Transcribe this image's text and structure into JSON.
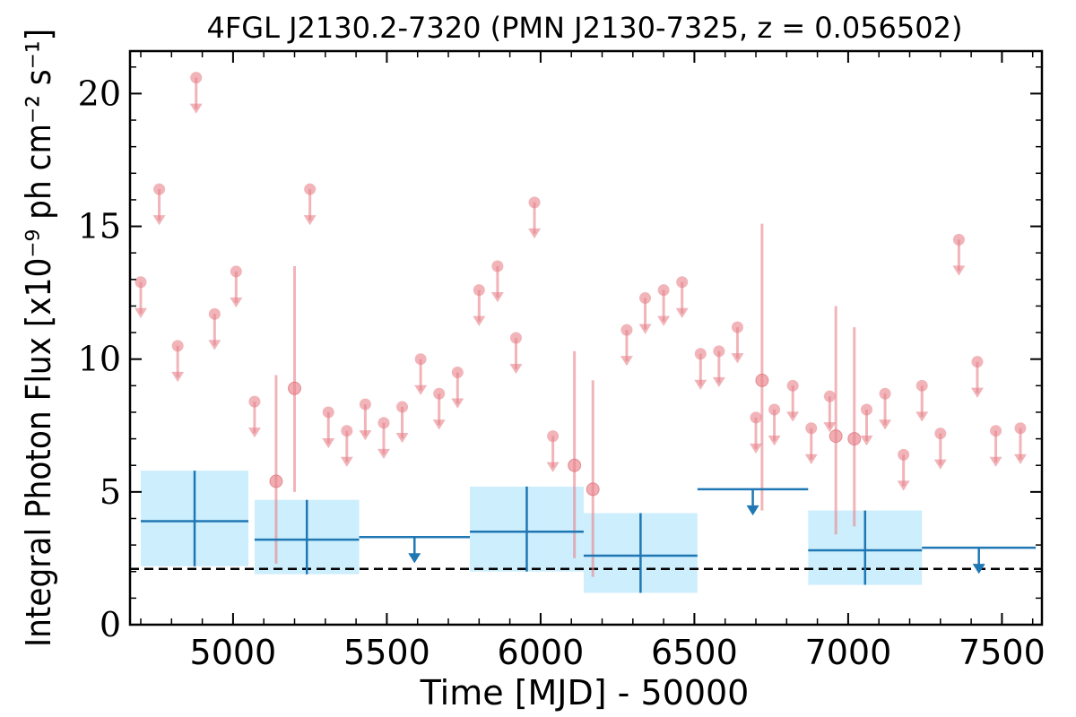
{
  "chart_data": {
    "type": "scatter",
    "title": "4FGL J2130.2-7320 (PMN J2130-7325, z = 0.056502)",
    "xlabel": "Time [MJD] - 50000",
    "ylabel": "Integral Photon Flux [x10⁻⁹ ph cm⁻² s⁻¹]",
    "xlim": [
      4665,
      7630
    ],
    "ylim": [
      0,
      21.6
    ],
    "x_ticks": [
      5000,
      5500,
      6000,
      6500,
      7000,
      7500
    ],
    "x_tick_labels": [
      "5000",
      "5500",
      "6000",
      "6500",
      "7000",
      "7500"
    ],
    "y_ticks": [
      0,
      5,
      10,
      15,
      20
    ],
    "y_tick_labels": [
      "0",
      "5",
      "10",
      "15",
      "20"
    ],
    "grid": false,
    "colors": {
      "short_bins": "#e8828a",
      "long_bins": "#1f77b4",
      "long_bins_band": "#cdeefc",
      "baseline": "#000000"
    },
    "series": [
      {
        "type": "upper_limits",
        "x": [
          4700,
          4760,
          4820,
          4880,
          4940,
          5010,
          5070,
          5250,
          5310,
          5370,
          5430,
          5490,
          5550,
          5610,
          5670,
          5730,
          5800,
          5860,
          5920,
          5980,
          6040,
          6280,
          6340,
          6400,
          6460,
          6520,
          6580,
          6640,
          6700,
          6760,
          6820,
          6880,
          6940,
          7060,
          7120,
          7180,
          7240,
          7300,
          7360,
          7420,
          7480,
          7560
        ],
        "values": [
          12.9,
          16.4,
          10.5,
          20.6,
          11.7,
          13.3,
          8.4,
          16.4,
          8.0,
          7.3,
          8.3,
          7.6,
          8.2,
          10.0,
          8.7,
          9.5,
          12.6,
          13.5,
          10.8,
          15.9,
          7.1,
          11.1,
          12.3,
          12.6,
          12.9,
          10.2,
          10.3,
          11.2,
          7.8,
          8.1,
          9.0,
          7.4,
          8.6,
          8.1,
          8.7,
          6.4,
          9.0,
          7.2,
          14.5,
          9.9,
          7.3,
          7.4
        ]
      },
      {
        "type": "detections",
        "x": [
          5140,
          5200,
          6110,
          6170,
          6720,
          6960,
          7020
        ],
        "values": [
          5.4,
          8.9,
          6.0,
          5.1,
          9.2,
          7.1,
          7.0
        ],
        "err_low": [
          2.3,
          5.0,
          2.5,
          1.8,
          4.3,
          3.4,
          3.7
        ],
        "err_high": [
          9.4,
          13.5,
          10.3,
          9.2,
          15.1,
          12.0,
          11.2
        ]
      },
      {
        "type": "binned_detections",
        "x_start": [
          4700,
          5070,
          5770,
          6140,
          6870
        ],
        "x_end": [
          5050,
          5410,
          6140,
          6510,
          7240
        ],
        "values": [
          3.9,
          3.2,
          3.5,
          2.6,
          2.8
        ],
        "err_low": [
          2.2,
          1.9,
          2.0,
          1.2,
          1.5
        ],
        "err_high": [
          5.8,
          4.7,
          5.2,
          4.2,
          4.3
        ]
      },
      {
        "type": "binned_upper_limits",
        "x_start": [
          5410,
          6510,
          7240
        ],
        "x_end": [
          5770,
          6870,
          7610
        ],
        "values": [
          3.3,
          5.1,
          2.9
        ]
      }
    ],
    "baseline": 2.1
  }
}
